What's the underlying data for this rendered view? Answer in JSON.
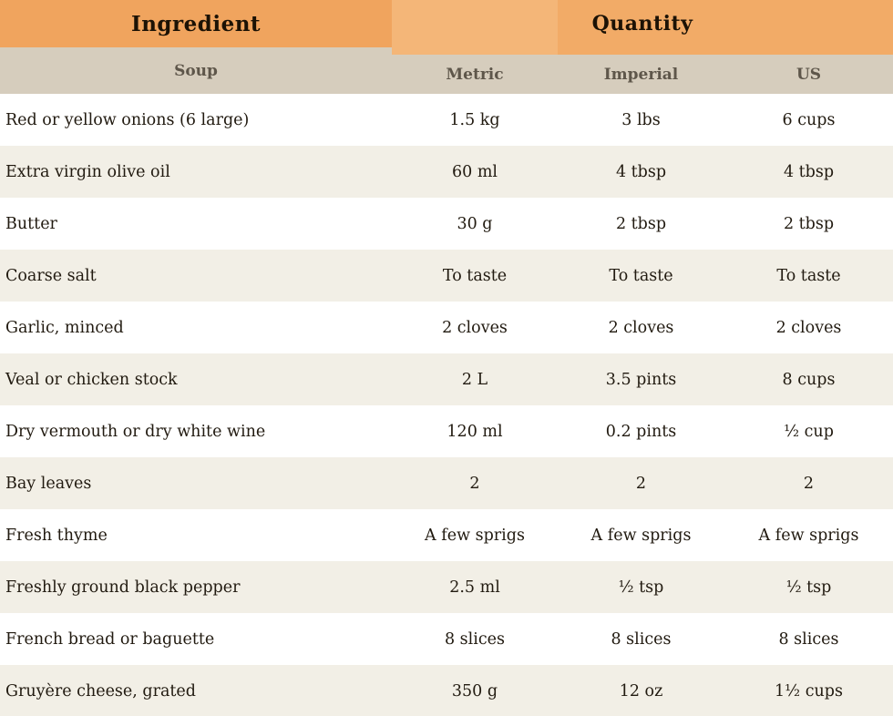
{
  "colors": {
    "header_orange": "#f0a45e",
    "quantity_orange": "#f2ab67",
    "metric_highlight_orange": "#f4b678",
    "subheader_tan": "#d6cdbd",
    "row_alt_cream": "#f2efe6",
    "row_white": "#ffffff",
    "header_text": "#1c1205",
    "subheader_text": "#5e564a",
    "body_text": "#211a10"
  },
  "table": {
    "header": {
      "ingredient": "Ingredient",
      "quantity": "Quantity"
    },
    "subheader": {
      "section": "Soup",
      "metric": "Metric",
      "imperial": "Imperial",
      "us": "US"
    },
    "rows": [
      {
        "ingredient": "Red or yellow onions (6 large)",
        "metric": "1.5 kg",
        "imperial": "3 lbs",
        "us": "6 cups"
      },
      {
        "ingredient": "Extra virgin olive oil",
        "metric": "60 ml",
        "imperial": "4 tbsp",
        "us": "4 tbsp"
      },
      {
        "ingredient": "Butter",
        "metric": "30 g",
        "imperial": "2 tbsp",
        "us": "2 tbsp"
      },
      {
        "ingredient": "Coarse salt",
        "metric": "To taste",
        "imperial": "To taste",
        "us": "To taste"
      },
      {
        "ingredient": "Garlic, minced",
        "metric": "2 cloves",
        "imperial": "2 cloves",
        "us": "2 cloves"
      },
      {
        "ingredient": "Veal or chicken stock",
        "metric": "2 L",
        "imperial": "3.5 pints",
        "us": "8 cups"
      },
      {
        "ingredient": "Dry vermouth or dry white wine",
        "metric": "120 ml",
        "imperial": "0.2 pints",
        "us": "½ cup"
      },
      {
        "ingredient": "Bay leaves",
        "metric": "2",
        "imperial": "2",
        "us": "2"
      },
      {
        "ingredient": "Fresh thyme",
        "metric": "A few sprigs",
        "imperial": "A few sprigs",
        "us": "A few sprigs"
      },
      {
        "ingredient": "Freshly ground black pepper",
        "metric": "2.5 ml",
        "imperial": "½ tsp",
        "us": "½ tsp"
      },
      {
        "ingredient": "French bread or baguette",
        "metric": "8 slices",
        "imperial": "8 slices",
        "us": "8 slices"
      },
      {
        "ingredient": "Gruyère cheese, grated",
        "metric": "350 g",
        "imperial": "12 oz",
        "us": "1½ cups"
      }
    ]
  }
}
